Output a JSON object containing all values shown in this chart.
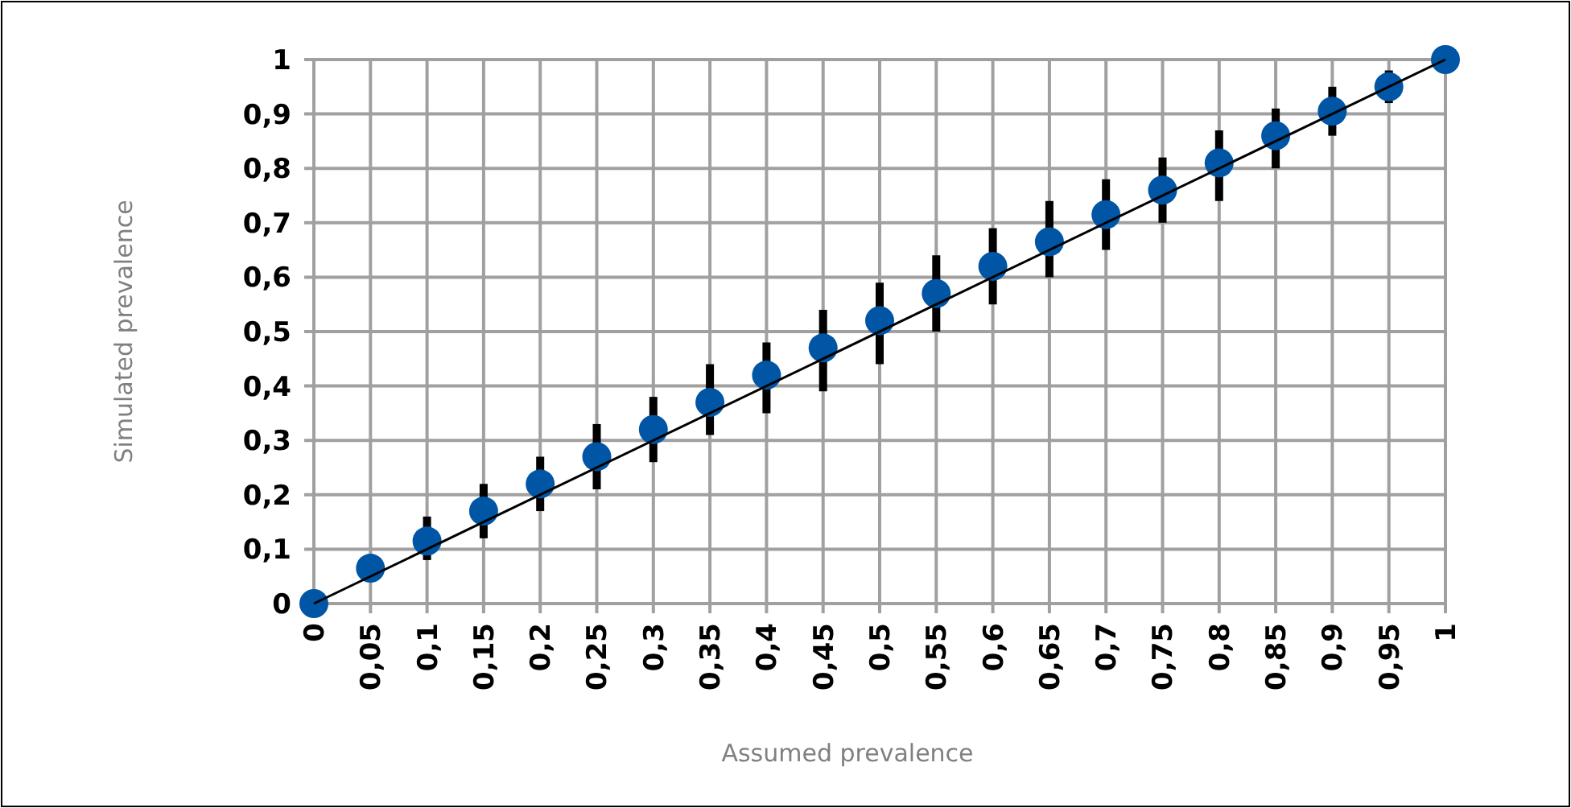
{
  "chart_data": {
    "type": "scatter",
    "xlabel": "Assumed prevalence",
    "ylabel": "Simulated prevalence",
    "x": [
      0,
      0.05,
      0.1,
      0.15,
      0.2,
      0.25,
      0.3,
      0.35,
      0.4,
      0.45,
      0.5,
      0.55,
      0.6,
      0.65,
      0.7,
      0.75,
      0.8,
      0.85,
      0.9,
      0.95,
      1
    ],
    "series": [
      {
        "color": "#0055a5",
        "marker": "circle",
        "values": [
          0,
          0.065,
          0.115,
          0.17,
          0.22,
          0.27,
          0.32,
          0.37,
          0.42,
          0.47,
          0.52,
          0.57,
          0.62,
          0.665,
          0.715,
          0.76,
          0.81,
          0.86,
          0.905,
          0.95,
          1
        ],
        "errors": [
          null,
          null,
          [
            0.08,
            0.16
          ],
          [
            0.12,
            0.22
          ],
          [
            0.17,
            0.27
          ],
          [
            0.21,
            0.33
          ],
          [
            0.26,
            0.38
          ],
          [
            0.31,
            0.44
          ],
          [
            0.35,
            0.48
          ],
          [
            0.39,
            0.54
          ],
          [
            0.44,
            0.59
          ],
          [
            0.5,
            0.64
          ],
          [
            0.55,
            0.69
          ],
          [
            0.6,
            0.74
          ],
          [
            0.65,
            0.78
          ],
          [
            0.7,
            0.82
          ],
          [
            0.74,
            0.87
          ],
          [
            0.8,
            0.91
          ],
          [
            0.86,
            0.95
          ],
          [
            0.92,
            0.98
          ],
          null
        ]
      },
      {
        "type": "line",
        "color": "#000000",
        "marker": "none",
        "x": [
          0,
          1
        ],
        "values": [
          0,
          1
        ]
      }
    ],
    "xlim": [
      0,
      1
    ],
    "ylim": [
      0,
      1
    ],
    "xticks": [
      0,
      {
        "value": 0.05,
        "label": "0,05"
      },
      {
        "value": 0.1,
        "label": "0,1"
      },
      {
        "value": 0.15,
        "label": "0,15"
      },
      {
        "value": 0.2,
        "label": "0,2"
      },
      {
        "value": 0.25,
        "label": "0,25"
      },
      {
        "value": 0.3,
        "label": "0,3"
      },
      {
        "value": 0.35,
        "label": "0,35"
      },
      {
        "value": 0.4,
        "label": "0,4"
      },
      {
        "value": 0.45,
        "label": "0,45"
      },
      {
        "value": 0.5,
        "label": "0,5"
      },
      {
        "value": 0.55,
        "label": "0,55"
      },
      {
        "value": 0.6,
        "label": "0,6"
      },
      {
        "value": 0.65,
        "label": "0,65"
      },
      {
        "value": 0.7,
        "label": "0,7"
      },
      {
        "value": 0.75,
        "label": "0,75"
      },
      {
        "value": 0.8,
        "label": "0,8"
      },
      {
        "value": 0.85,
        "label": "0,85"
      },
      {
        "value": 0.9,
        "label": "0,9"
      },
      {
        "value": 0.95,
        "label": "0,95"
      },
      1
    ],
    "yticks": [
      0,
      {
        "value": 0.1,
        "label": "0,1"
      },
      {
        "value": 0.2,
        "label": "0,2"
      },
      {
        "value": 0.3,
        "label": "0,3"
      },
      {
        "value": 0.4,
        "label": "0,4"
      },
      {
        "value": 0.5,
        "label": "0,5"
      },
      {
        "value": 0.6,
        "label": "0,6"
      },
      {
        "value": 0.7,
        "label": "0,7"
      },
      {
        "value": 0.8,
        "label": "0,8"
      },
      {
        "value": 0.9,
        "label": "0,9"
      },
      1
    ],
    "grid": true
  }
}
